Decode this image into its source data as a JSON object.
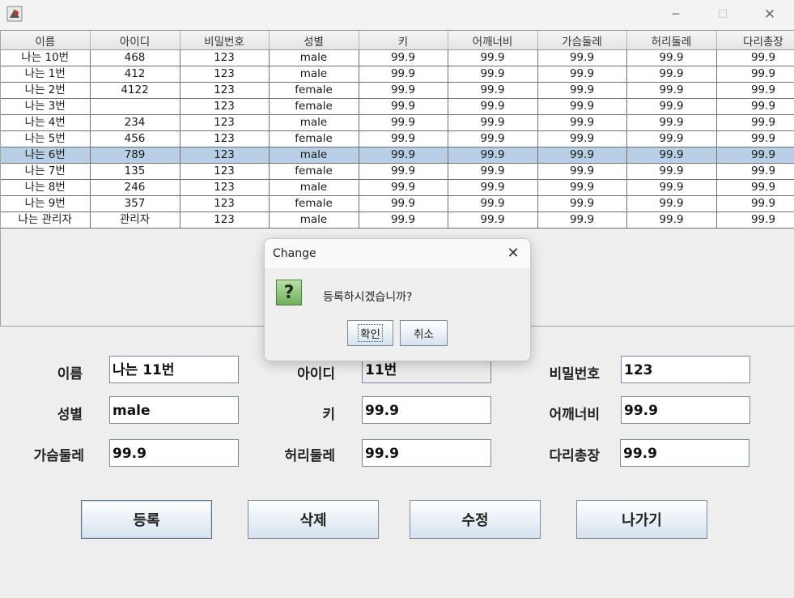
{
  "window": {
    "minimize_glyph": "─",
    "maximize_glyph": "☐",
    "close_glyph": "✕"
  },
  "table": {
    "columns": [
      "이름",
      "아이디",
      "비밀번호",
      "성별",
      "키",
      "어깨너비",
      "가슴둘레",
      "허리둘레",
      "다리총장"
    ],
    "rows": [
      [
        "나는 10번",
        "468",
        "123",
        "male",
        "99.9",
        "99.9",
        "99.9",
        "99.9",
        "99.9"
      ],
      [
        "나는 1번",
        "412",
        "123",
        "male",
        "99.9",
        "99.9",
        "99.9",
        "99.9",
        "99.9"
      ],
      [
        "나는 2번",
        "4122",
        "123",
        "female",
        "99.9",
        "99.9",
        "99.9",
        "99.9",
        "99.9"
      ],
      [
        "나는 3번",
        "",
        "123",
        "female",
        "99.9",
        "99.9",
        "99.9",
        "99.9",
        "99.9"
      ],
      [
        "나는 4번",
        "234",
        "123",
        "male",
        "99.9",
        "99.9",
        "99.9",
        "99.9",
        "99.9"
      ],
      [
        "나는 5번",
        "456",
        "123",
        "female",
        "99.9",
        "99.9",
        "99.9",
        "99.9",
        "99.9"
      ],
      [
        "나는 6번",
        "789",
        "123",
        "male",
        "99.9",
        "99.9",
        "99.9",
        "99.9",
        "99.9"
      ],
      [
        "나는 7번",
        "135",
        "123",
        "female",
        "99.9",
        "99.9",
        "99.9",
        "99.9",
        "99.9"
      ],
      [
        "나는 8번",
        "246",
        "123",
        "male",
        "99.9",
        "99.9",
        "99.9",
        "99.9",
        "99.9"
      ],
      [
        "나는 9번",
        "357",
        "123",
        "female",
        "99.9",
        "99.9",
        "99.9",
        "99.9",
        "99.9"
      ],
      [
        "나는 관리자",
        "관리자",
        "123",
        "male",
        "99.9",
        "99.9",
        "99.9",
        "99.9",
        "99.9"
      ]
    ],
    "selected_row": 6
  },
  "form": {
    "name": {
      "label": "이름",
      "value": "나는 11번"
    },
    "id": {
      "label": "아이디",
      "value": "11번"
    },
    "password": {
      "label": "비밀번호",
      "value": "123"
    },
    "gender": {
      "label": "성별",
      "value": "male"
    },
    "height": {
      "label": "키",
      "value": "99.9"
    },
    "shoulder": {
      "label": "어깨너비",
      "value": "99.9"
    },
    "chest": {
      "label": "가슴둘레",
      "value": "99.9"
    },
    "waist": {
      "label": "허리둘레",
      "value": "99.9"
    },
    "leg": {
      "label": "다리총장",
      "value": "99.9"
    }
  },
  "buttons": {
    "register": "등록",
    "delete": "삭제",
    "modify": "수정",
    "exit": "나가기"
  },
  "dialog": {
    "title": "Change",
    "close_glyph": "✕",
    "icon_glyph": "?",
    "message": "등록하시겠습니까?",
    "ok": "확인",
    "cancel": "취소"
  }
}
